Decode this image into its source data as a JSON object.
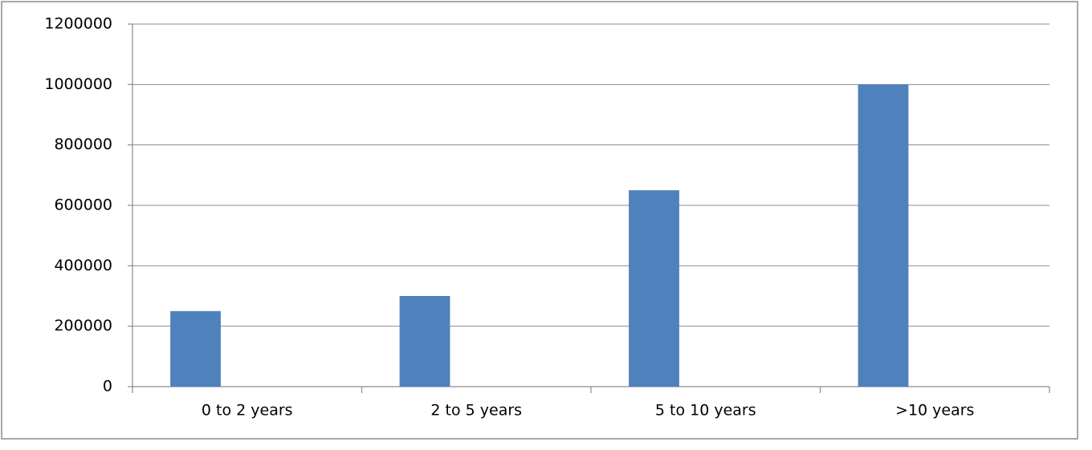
{
  "chart_data": {
    "type": "bar",
    "categories": [
      "0 to 2 years",
      "2 to 5 years",
      "5 to 10 years",
      ">10 years"
    ],
    "values": [
      250000,
      300000,
      650000,
      1000000
    ],
    "color": "#4f81bd",
    "ylim": [
      0,
      1200000
    ],
    "yticks": [
      0,
      200000,
      400000,
      600000,
      800000,
      1000000,
      1200000
    ],
    "grid": true
  }
}
